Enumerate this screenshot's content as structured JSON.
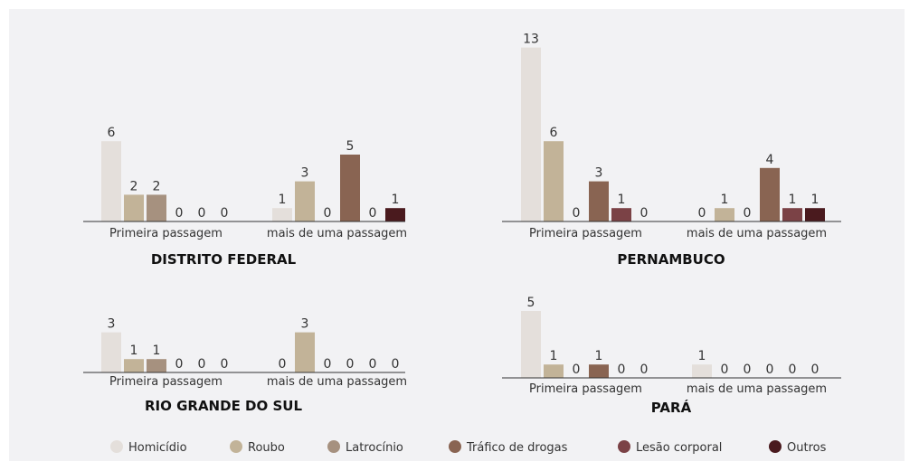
{
  "legend": [
    {
      "name": "Homicídio",
      "color": "#e4dfdb"
    },
    {
      "name": "Roubo",
      "color": "#c2b398"
    },
    {
      "name": "Latrocínio",
      "color": "#a6917f"
    },
    {
      "name": "Tráfico de drogas",
      "color": "#896452"
    },
    {
      "name": "Lesão corporal",
      "color": "#7b4246"
    },
    {
      "name": "Outros",
      "color": "#4a1a1e"
    }
  ],
  "chart_data": [
    {
      "type": "bar",
      "title": "DISTRITO FEDERAL",
      "categories": [
        "Primeira passagem",
        "mais de uma passagem"
      ],
      "values": [
        [
          6,
          2,
          2,
          0,
          0,
          0
        ],
        [
          1,
          3,
          0,
          5,
          0,
          1
        ]
      ]
    },
    {
      "type": "bar",
      "title": "PERNAMBUCO",
      "categories": [
        "Primeira passagem",
        "mais de uma passagem"
      ],
      "values": [
        [
          13,
          6,
          0,
          3,
          1,
          0
        ],
        [
          0,
          1,
          0,
          4,
          1,
          1
        ]
      ]
    },
    {
      "type": "bar",
      "title": "RIO GRANDE DO SUL",
      "categories": [
        "Primeira passagem",
        "mais de uma passagem"
      ],
      "values": [
        [
          3,
          1,
          1,
          0,
          0,
          0
        ],
        [
          0,
          3,
          0,
          0,
          0,
          0
        ]
      ]
    },
    {
      "type": "bar",
      "title": "PARÁ",
      "categories": [
        "Primeira passagem",
        "mais de uma passagem"
      ],
      "values": [
        [
          5,
          1,
          0,
          1,
          0,
          0
        ],
        [
          1,
          0,
          0,
          0,
          0,
          0
        ]
      ]
    }
  ]
}
